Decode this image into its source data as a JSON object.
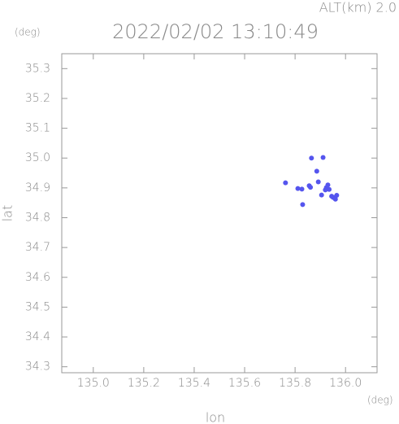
{
  "chart_data": {
    "type": "scatter",
    "title": "2022/02/02 13:10:49",
    "subtitle": "ALT(km)  2.0",
    "y_unit": "(deg)",
    "x_unit": "(deg)",
    "x_label": "lon",
    "y_label": "lat",
    "color": "#5555ee",
    "x": [
      135.762,
      135.811,
      135.827,
      135.856,
      135.861,
      135.83,
      135.865,
      135.911,
      135.886,
      135.892,
      135.905,
      135.924,
      135.93,
      135.935,
      135.92,
      135.951,
      135.96,
      135.965,
      135.945
    ],
    "values": [
      34.917,
      34.898,
      34.896,
      34.907,
      34.902,
      34.844,
      35.0,
      35.002,
      34.956,
      34.92,
      34.876,
      34.901,
      34.91,
      34.895,
      34.893,
      34.868,
      34.862,
      34.875,
      34.872
    ],
    "xlim": [
      134.875,
      136.125
    ],
    "xticks": [
      {
        "value": 135.0,
        "label": "135.0"
      },
      135.2,
      135.4,
      135.6,
      135.8,
      {
        "value": 136.0,
        "label": "136.0"
      }
    ],
    "ylim": [
      34.28,
      35.35
    ],
    "yticks": [
      34.3,
      34.4,
      34.5,
      34.6,
      34.7,
      34.8,
      34.9,
      {
        "value": 35.0,
        "label": "35.0"
      },
      35.1,
      35.2,
      35.3
    ]
  }
}
